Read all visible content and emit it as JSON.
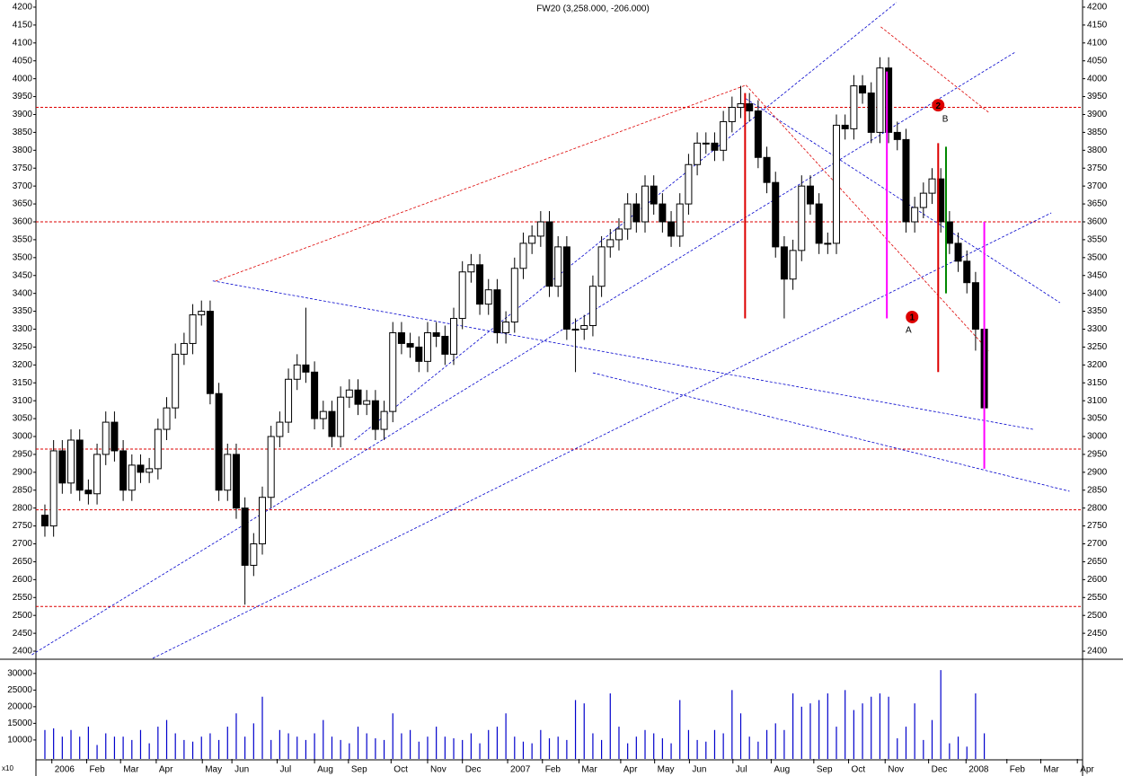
{
  "chart_data": {
    "type": "candlestick",
    "title": "FW20 (3,258.000, -206.000)",
    "xlim": [
      -1.03,
      119.3
    ],
    "xticks": [
      {
        "value": 0.8,
        "label": "2006"
      },
      {
        "value": 4.8,
        "label": "Feb"
      },
      {
        "value": 8.7,
        "label": "Mar"
      },
      {
        "value": 12.8,
        "label": "Apr"
      },
      {
        "value": 18.1,
        "label": "May"
      },
      {
        "value": 21.5,
        "label": "Jun"
      },
      {
        "value": 26.7,
        "label": "Jul"
      },
      {
        "value": 31.0,
        "label": "Aug"
      },
      {
        "value": 34.9,
        "label": "Sep"
      },
      {
        "value": 39.8,
        "label": "Oct"
      },
      {
        "value": 44.0,
        "label": "Nov"
      },
      {
        "value": 48.0,
        "label": "Dec"
      },
      {
        "value": 53.2,
        "label": "2007"
      },
      {
        "value": 57.2,
        "label": "Feb"
      },
      {
        "value": 61.4,
        "label": "Mar"
      },
      {
        "value": 66.2,
        "label": "Apr"
      },
      {
        "value": 70.1,
        "label": "May"
      },
      {
        "value": 74.1,
        "label": "Jun"
      },
      {
        "value": 79.1,
        "label": "Jul"
      },
      {
        "value": 83.5,
        "label": "Aug"
      },
      {
        "value": 88.4,
        "label": "Sep"
      },
      {
        "value": 92.4,
        "label": "Oct"
      },
      {
        "value": 96.6,
        "label": "Nov"
      },
      {
        "value": 101.6,
        "label": "Dec"
      },
      {
        "value": 105.9,
        "label": "2008"
      },
      {
        "value": 110.6,
        "label": "Feb"
      },
      {
        "value": 114.5,
        "label": "Mar"
      },
      {
        "value": 118.7,
        "label": "Apr"
      }
    ],
    "ylim": [
      2380,
      4220
    ],
    "yticks": [
      2400,
      2450,
      2500,
      2550,
      2600,
      2650,
      2700,
      2750,
      2800,
      2850,
      2900,
      2950,
      3000,
      3050,
      3100,
      3150,
      3200,
      3250,
      3300,
      3350,
      3400,
      3450,
      3500,
      3550,
      3600,
      3650,
      3700,
      3750,
      3800,
      3850,
      3900,
      3950,
      4000,
      4050,
      4100,
      4150,
      4200
    ],
    "open": [
      2780,
      2750,
      2960,
      2870,
      2990,
      2850,
      2840,
      2950,
      3040,
      2960,
      2850,
      2920,
      2900,
      2910,
      3020,
      3080,
      3230,
      3260,
      3340,
      3350,
      3120,
      2850,
      2950,
      2800,
      2640,
      2700,
      2830,
      3000,
      3040,
      3160,
      3200,
      3180,
      3050,
      3070,
      3000,
      3110,
      3130,
      3090,
      3100,
      3020,
      3070,
      3290,
      3260,
      3250,
      3210,
      3290,
      3280,
      3230,
      3330,
      3460,
      3480,
      3370,
      3410,
      3290,
      3320,
      3470,
      3540,
      3560,
      3600,
      3420,
      3530,
      3300,
      3300,
      3310,
      3420,
      3530,
      3550,
      3580,
      3650,
      3600,
      3700,
      3650,
      3600,
      3560,
      3650,
      3760,
      3820,
      3820,
      3800,
      3880,
      3920,
      3930,
      3910,
      3780,
      3710,
      3530,
      3440,
      3520,
      3700,
      3650,
      3540,
      3540,
      3870,
      3860,
      3980,
      3960,
      3850,
      4030,
      3850,
      3830,
      3600,
      3640,
      3680,
      3720,
      3600,
      3540,
      3490,
      3430,
      3300
    ],
    "high": [
      2810,
      2990,
      2990,
      3020,
      3020,
      2880,
      2980,
      3070,
      3070,
      2990,
      2950,
      2950,
      2940,
      3050,
      3110,
      3260,
      3290,
      3370,
      3380,
      3380,
      3150,
      2980,
      2980,
      2830,
      2730,
      2860,
      3030,
      3070,
      3190,
      3230,
      3360,
      3210,
      3100,
      3100,
      3140,
      3160,
      3160,
      3130,
      3130,
      3100,
      3320,
      3320,
      3290,
      3280,
      3320,
      3320,
      3310,
      3360,
      3490,
      3510,
      3510,
      3440,
      3440,
      3350,
      3500,
      3570,
      3590,
      3630,
      3630,
      3560,
      3560,
      3330,
      3340,
      3450,
      3560,
      3580,
      3610,
      3680,
      3680,
      3730,
      3730,
      3680,
      3630,
      3680,
      3790,
      3850,
      3850,
      3850,
      3910,
      3950,
      3980,
      3960,
      3940,
      3810,
      3740,
      3560,
      3550,
      3730,
      3730,
      3680,
      3570,
      3900,
      3900,
      4010,
      4010,
      3990,
      4060,
      4060,
      3880,
      3860,
      3670,
      3710,
      3750,
      3750,
      3630,
      3570,
      3520,
      3460,
      3310
    ],
    "low": [
      2720,
      2720,
      2840,
      2840,
      2820,
      2810,
      2810,
      2920,
      2930,
      2820,
      2820,
      2870,
      2870,
      2880,
      2990,
      3050,
      3200,
      3230,
      3310,
      3090,
      2820,
      2820,
      2770,
      2530,
      2610,
      2670,
      2800,
      2970,
      3010,
      3130,
      3150,
      3020,
      3020,
      2970,
      2970,
      3080,
      3060,
      3060,
      2990,
      2990,
      3040,
      3230,
      3220,
      3180,
      3180,
      3250,
      3200,
      3200,
      3300,
      3430,
      3340,
      3340,
      3260,
      3260,
      3290,
      3440,
      3510,
      3530,
      3390,
      3390,
      3270,
      3180,
      3270,
      3280,
      3390,
      3500,
      3520,
      3550,
      3570,
      3570,
      3620,
      3570,
      3530,
      3530,
      3620,
      3730,
      3790,
      3770,
      3770,
      3850,
      3890,
      3880,
      3750,
      3680,
      3500,
      3330,
      3410,
      3490,
      3620,
      3510,
      3510,
      3510,
      3830,
      3830,
      3930,
      3820,
      3820,
      3820,
      3800,
      3570,
      3570,
      3610,
      3650,
      3570,
      3510,
      3460,
      3400,
      3240,
      3060
    ],
    "close": [
      2750,
      2960,
      2870,
      2990,
      2850,
      2840,
      2950,
      3040,
      2960,
      2850,
      2920,
      2900,
      2910,
      3020,
      3080,
      3230,
      3260,
      3340,
      3350,
      3120,
      2850,
      2950,
      2800,
      2640,
      2700,
      2830,
      3000,
      3040,
      3160,
      3200,
      3180,
      3050,
      3070,
      3000,
      3110,
      3130,
      3090,
      3100,
      3020,
      3070,
      3290,
      3260,
      3250,
      3210,
      3290,
      3280,
      3230,
      3330,
      3460,
      3480,
      3370,
      3410,
      3290,
      3320,
      3470,
      3540,
      3560,
      3600,
      3420,
      3530,
      3300,
      3300,
      3310,
      3420,
      3530,
      3550,
      3580,
      3650,
      3600,
      3700,
      3650,
      3600,
      3560,
      3650,
      3760,
      3820,
      3820,
      3800,
      3880,
      3920,
      3930,
      3910,
      3780,
      3710,
      3530,
      3440,
      3520,
      3700,
      3650,
      3540,
      3540,
      3870,
      3860,
      3980,
      3960,
      3850,
      4030,
      3850,
      3830,
      3600,
      3640,
      3680,
      3720,
      3600,
      3540,
      3490,
      3430,
      3300,
      3080
    ],
    "volume": [
      13000,
      13500,
      11000,
      13000,
      11000,
      14000,
      8500,
      12000,
      11000,
      11000,
      10000,
      13000,
      9000,
      14000,
      16000,
      12000,
      10000,
      9500,
      11000,
      12000,
      10000,
      14000,
      18000,
      11000,
      15000,
      23000,
      10000,
      13000,
      12000,
      11000,
      10000,
      12000,
      16000,
      11000,
      10000,
      9000,
      14000,
      12000,
      10500,
      10000,
      18000,
      12000,
      13000,
      9500,
      11000,
      14000,
      11000,
      10500,
      10000,
      12000,
      9000,
      13000,
      14000,
      18000,
      11000,
      9500,
      9000,
      13000,
      10500,
      11000,
      10000,
      22000,
      21000,
      12000,
      10000,
      24000,
      14000,
      9000,
      11000,
      13000,
      12000,
      10500,
      9000,
      22000,
      13000,
      10000,
      9500,
      13000,
      12000,
      25000,
      18000,
      11000,
      9500,
      13000,
      15000,
      13000,
      24000,
      20000,
      21000,
      22000,
      24000,
      14000,
      25000,
      19000,
      21000,
      23000,
      24000,
      23000,
      10500,
      14000,
      21000,
      10000,
      16000,
      31000,
      9000,
      11000,
      8000,
      24000,
      12000
    ],
    "vlim": [
      4300,
      34000
    ],
    "vticks": [
      10000,
      15000,
      20000,
      25000,
      30000
    ],
    "volume_label": "x10",
    "volume_color": "#0000cc",
    "up_color": "#ffffff",
    "down_color": "#000000",
    "levels": [
      3920,
      3600,
      2965,
      2795,
      2525
    ],
    "level_color": "#dd0000",
    "trendlines": [
      {
        "color": "#0000cc",
        "points": [
          -1.5,
          2390,
          111.6,
          4075
        ]
      },
      {
        "color": "#0000cc",
        "points": [
          12.4,
          2380,
          115.7,
          3625
        ]
      },
      {
        "color": "#0000cc",
        "points": [
          19.3,
          3435,
          113.6,
          3020
        ]
      },
      {
        "color": "#0000cc",
        "points": [
          63.0,
          3178,
          117.8,
          2847
        ]
      },
      {
        "color": "#0000cc",
        "points": [
          35.6,
          2990,
          97.9,
          4213
        ]
      },
      {
        "color": "#0000cc",
        "points": [
          80.6,
          3944,
          116.7,
          3374
        ]
      },
      {
        "color": "#dd0000",
        "points": [
          19.6,
          3434,
          80.6,
          3982
        ]
      },
      {
        "color": "#dd0000",
        "points": [
          80.6,
          3982,
          108.5,
          3240
        ]
      },
      {
        "color": "#dd0000",
        "points": [
          96.1,
          4145,
          108.5,
          3906
        ]
      }
    ],
    "vertical_lines": [
      {
        "color": "#ff00ff",
        "x": 96.8,
        "range": [
          3330,
          4020
        ]
      },
      {
        "color": "#ff00ff",
        "x": 108.0,
        "range": [
          2910,
          3600
        ]
      },
      {
        "color": "#dd0000",
        "x": 80.5,
        "range": [
          3330,
          3960
        ]
      },
      {
        "color": "#dd0000",
        "x": 102.7,
        "range": [
          3180,
          3820
        ]
      },
      {
        "color": "#008800",
        "x": 103.6,
        "range": [
          3400,
          3810
        ]
      }
    ],
    "annotations": [
      {
        "text": "A",
        "x": 99.3,
        "y": 3296,
        "color": "#0000cc"
      },
      {
        "text": "B",
        "x": 103.5,
        "y": 3886,
        "color": "#0000cc"
      }
    ],
    "markers": [
      {
        "text": "1",
        "x": 99.7,
        "y": 3334,
        "color": "#dd0000"
      },
      {
        "text": "2",
        "x": 102.7,
        "y": 3926,
        "color": "#dd0000"
      }
    ]
  }
}
